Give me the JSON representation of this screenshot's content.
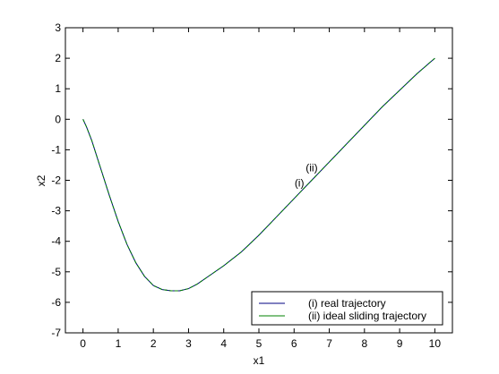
{
  "chart_data": {
    "type": "line",
    "title": "",
    "xlabel": "x1",
    "ylabel": "x2",
    "xlim": [
      -0.5,
      10.5
    ],
    "ylim": [
      -7,
      3
    ],
    "xticks": [
      0,
      1,
      2,
      3,
      4,
      5,
      6,
      7,
      8,
      9,
      10
    ],
    "yticks": [
      -7,
      -6,
      -5,
      -4,
      -3,
      -2,
      -1,
      0,
      1,
      2,
      3
    ],
    "grid": false,
    "legend_position": "bottom-right",
    "series": [
      {
        "name": "(i) real trajectory",
        "color": "#000080",
        "x": [
          0,
          0.1,
          0.25,
          0.5,
          0.75,
          1.0,
          1.25,
          1.5,
          1.75,
          2.0,
          2.25,
          2.5,
          2.75,
          3.0,
          3.25,
          3.5,
          4.0,
          4.5,
          5.0,
          5.5,
          6.0,
          6.5,
          7.0,
          7.5,
          8.0,
          8.5,
          9.0,
          9.5,
          10.0
        ],
        "y": [
          0,
          -0.25,
          -0.7,
          -1.6,
          -2.5,
          -3.35,
          -4.1,
          -4.7,
          -5.15,
          -5.45,
          -5.58,
          -5.62,
          -5.62,
          -5.55,
          -5.4,
          -5.2,
          -4.8,
          -4.35,
          -3.8,
          -3.2,
          -2.6,
          -2.0,
          -1.4,
          -0.8,
          -0.2,
          0.4,
          0.95,
          1.5,
          2.0
        ]
      },
      {
        "name": "(ii) ideal sliding trajectory",
        "color": "#008000",
        "x": [
          0,
          0.1,
          0.25,
          0.5,
          0.75,
          1.0,
          1.25,
          1.5,
          1.75,
          2.0,
          2.25,
          2.5,
          2.75,
          3.0,
          3.25,
          3.5,
          4.0,
          4.5,
          5.0,
          5.5,
          6.0,
          6.5,
          7.0,
          7.5,
          8.0,
          8.5,
          9.0,
          9.5,
          10.0
        ],
        "y": [
          0,
          -0.25,
          -0.7,
          -1.6,
          -2.5,
          -3.35,
          -4.1,
          -4.7,
          -5.15,
          -5.45,
          -5.58,
          -5.62,
          -5.62,
          -5.55,
          -5.4,
          -5.2,
          -4.8,
          -4.35,
          -3.8,
          -3.2,
          -2.6,
          -2.0,
          -1.4,
          -0.8,
          -0.2,
          0.4,
          0.95,
          1.5,
          2.0
        ]
      }
    ],
    "annotations": [
      {
        "text": "(i)",
        "x": 6.15,
        "y": -2.2
      },
      {
        "text": "(ii)",
        "x": 6.5,
        "y": -1.7
      }
    ]
  }
}
